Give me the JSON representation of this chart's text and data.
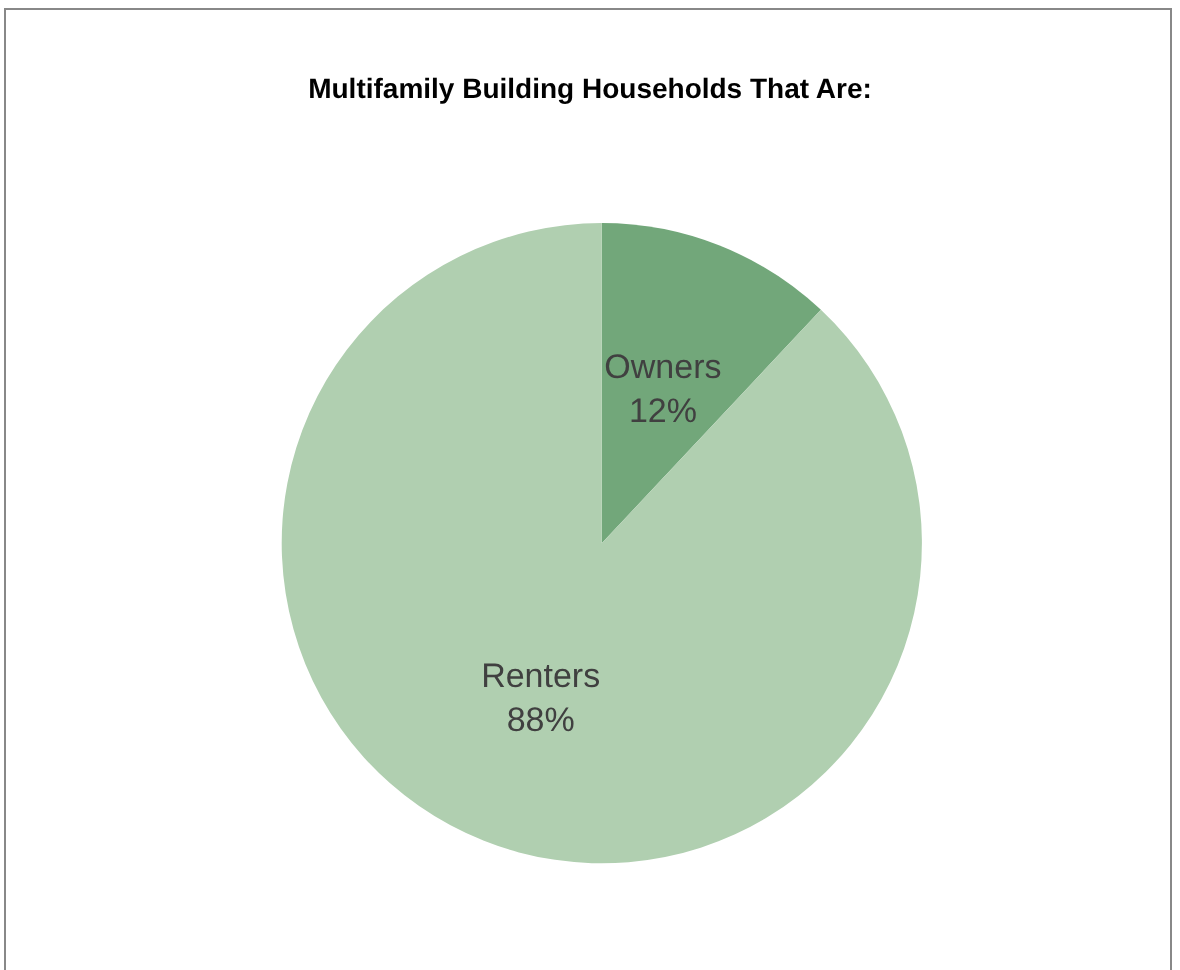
{
  "chart_data": {
    "type": "pie",
    "title": "Multifamily Building Households That Are:",
    "categories": [
      "Owners",
      "Renters"
    ],
    "values": [
      12,
      88
    ],
    "value_labels": [
      "12%",
      "88%"
    ],
    "colors": [
      "#72a77a",
      "#b0cfb0"
    ],
    "legend": false
  }
}
